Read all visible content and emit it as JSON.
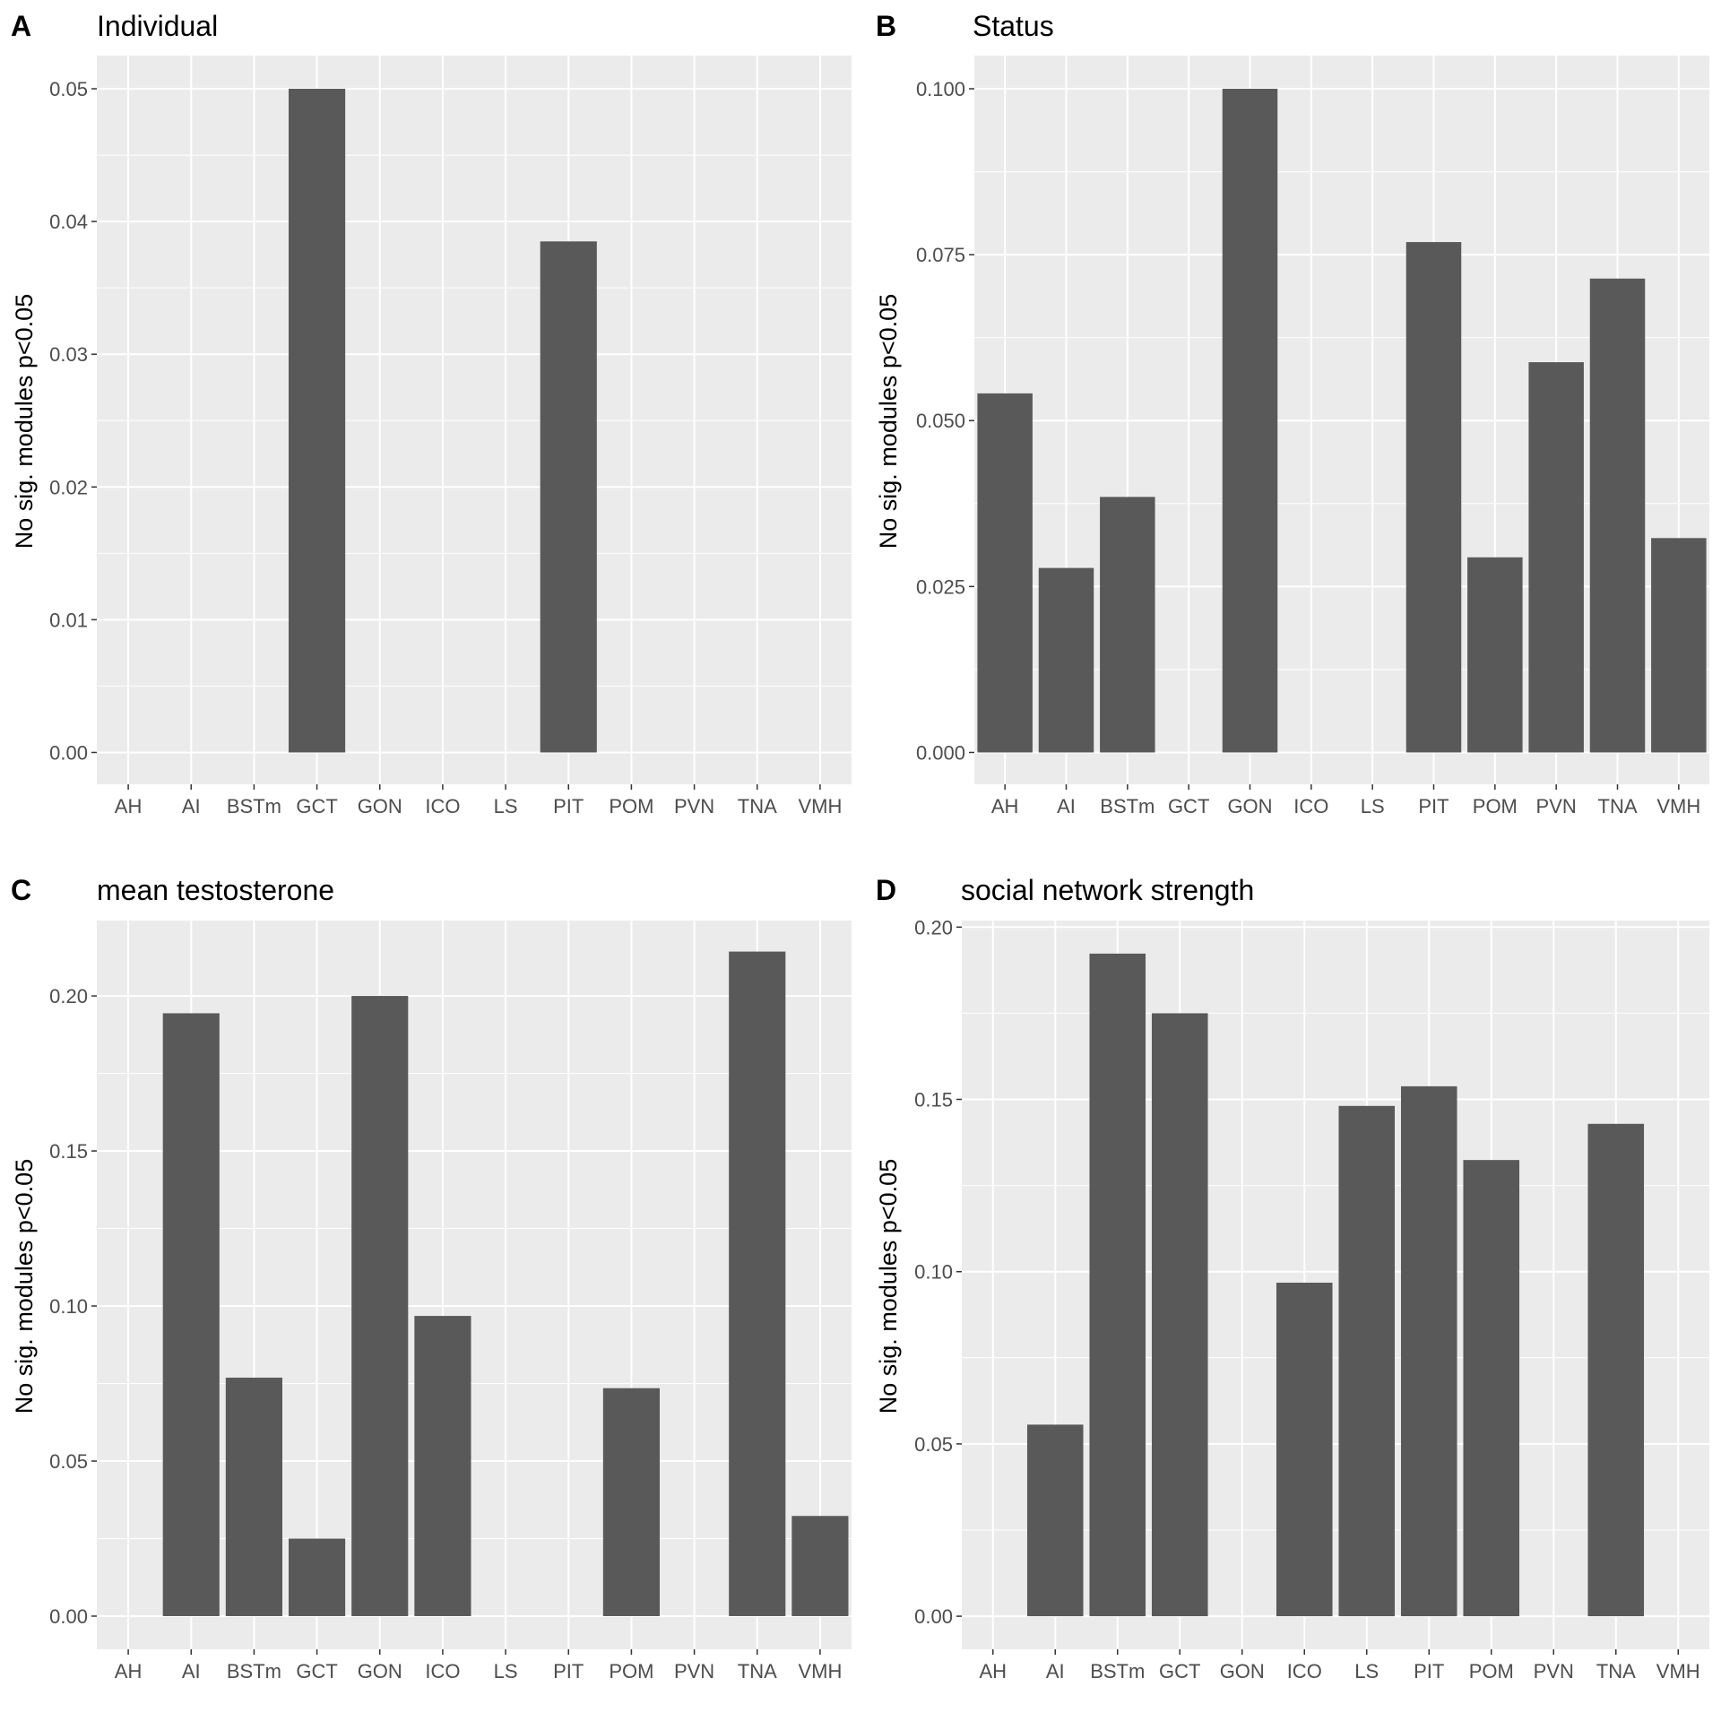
{
  "chart_data": [
    {
      "type": "bar",
      "panel_letter": "A",
      "title": "Individual",
      "ylabel": "No sig. modules p<0.05",
      "xlabel": "",
      "categories": [
        "AH",
        "AI",
        "BSTm",
        "GCT",
        "GON",
        "ICO",
        "LS",
        "PIT",
        "POM",
        "PVN",
        "TNA",
        "VMH"
      ],
      "values": [
        0,
        0,
        0,
        0.05,
        0,
        0,
        0,
        0.0385,
        0,
        0,
        0,
        0
      ],
      "ylim": [
        -0.0024,
        0.0525
      ],
      "yticks": [
        0,
        0.01,
        0.02,
        0.03,
        0.04,
        0.05
      ],
      "ytick_labels": [
        "0.00",
        "0.01",
        "0.02",
        "0.03",
        "0.04",
        "0.05"
      ],
      "grid": true,
      "bar_color": "#595959",
      "panel_background": "#ebebeb",
      "grid_color": "#ffffff"
    },
    {
      "type": "bar",
      "panel_letter": "B",
      "title": "Status",
      "ylabel": "No sig. modules p<0.05",
      "xlabel": "",
      "categories": [
        "AH",
        "AI",
        "BSTm",
        "GCT",
        "GON",
        "ICO",
        "LS",
        "PIT",
        "POM",
        "PVN",
        "TNA",
        "VMH"
      ],
      "values": [
        0.0541,
        0.0278,
        0.0385,
        0,
        0.1,
        0,
        0,
        0.0769,
        0.0294,
        0.0588,
        0.0714,
        0.0323
      ],
      "ylim": [
        -0.0048,
        0.105
      ],
      "yticks": [
        0,
        0.025,
        0.05,
        0.075,
        0.1
      ],
      "ytick_labels": [
        "0.000",
        "0.025",
        "0.050",
        "0.075",
        "0.100"
      ],
      "grid": true,
      "bar_color": "#595959",
      "panel_background": "#ebebeb",
      "grid_color": "#ffffff"
    },
    {
      "type": "bar",
      "panel_letter": "C",
      "title": "mean testosterone",
      "ylabel": "No sig. modules p<0.05",
      "xlabel": "",
      "categories": [
        "AH",
        "AI",
        "BSTm",
        "GCT",
        "GON",
        "ICO",
        "LS",
        "PIT",
        "POM",
        "PVN",
        "TNA",
        "VMH"
      ],
      "values": [
        0,
        0.1944,
        0.0769,
        0.025,
        0.2,
        0.0968,
        0,
        0,
        0.0735,
        0,
        0.2143,
        0.0323
      ],
      "ylim": [
        -0.0107,
        0.2243
      ],
      "yticks": [
        0,
        0.05,
        0.1,
        0.15,
        0.2
      ],
      "ytick_labels": [
        "0.00",
        "0.05",
        "0.10",
        "0.15",
        "0.20"
      ],
      "grid": true,
      "bar_color": "#595959",
      "panel_background": "#ebebeb",
      "grid_color": "#ffffff"
    },
    {
      "type": "bar",
      "panel_letter": "D",
      "title": "social network strength",
      "ylabel": "No sig. modules p<0.05",
      "xlabel": "",
      "categories": [
        "AH",
        "AI",
        "BSTm",
        "GCT",
        "GON",
        "ICO",
        "LS",
        "PIT",
        "POM",
        "PVN",
        "TNA",
        "VMH"
      ],
      "values": [
        0,
        0.0556,
        0.1923,
        0.175,
        0,
        0.0968,
        0.1481,
        0.1538,
        0.1324,
        0,
        0.1429,
        0
      ],
      "ylim": [
        -0.0096,
        0.2019
      ],
      "yticks": [
        0,
        0.05,
        0.1,
        0.15,
        0.2
      ],
      "ytick_labels": [
        "0.00",
        "0.05",
        "0.10",
        "0.15",
        "0.20"
      ],
      "grid": true,
      "bar_color": "#595959",
      "panel_background": "#ebebeb",
      "grid_color": "#ffffff"
    }
  ]
}
